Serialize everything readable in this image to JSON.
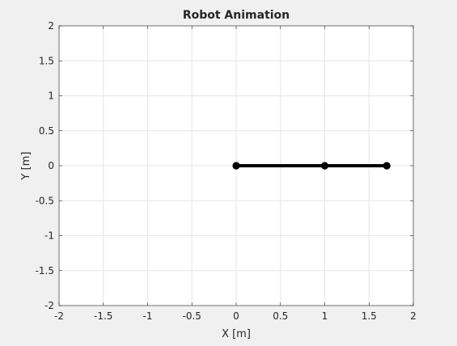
{
  "chart_data": {
    "type": "line",
    "title": "Robot Animation",
    "xlabel": "X [m]",
    "ylabel": "Y [m]",
    "xlim": [
      -2,
      2
    ],
    "ylim": [
      -2,
      2
    ],
    "grid": true,
    "x_ticks": [
      "-2",
      "-1.5",
      "-1",
      "-0.5",
      "0",
      "0.5",
      "1",
      "1.5",
      "2"
    ],
    "y_ticks": [
      "2",
      "1.5",
      "1",
      "0.5",
      "0",
      "-0.5",
      "-1",
      "-1.5",
      "-2"
    ],
    "series": [
      {
        "x": [
          0,
          1,
          1.7
        ],
        "y": [
          0,
          0,
          0
        ],
        "color": "#000000",
        "marker": "filled-circle"
      }
    ]
  }
}
